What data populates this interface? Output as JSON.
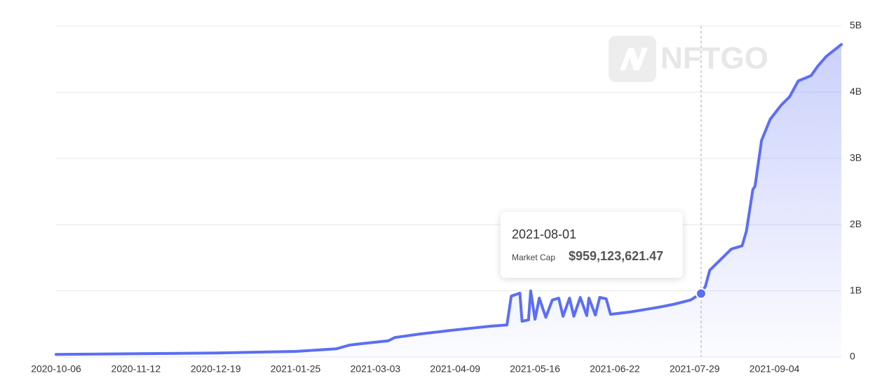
{
  "chart_data": {
    "type": "area",
    "watermark": "NFTGO",
    "x": [
      "2020-10-06",
      "2020-11-12",
      "2020-12-19",
      "2021-01-10",
      "2021-01-25",
      "2021-02-13",
      "2021-02-19",
      "2021-02-24",
      "2021-03-09",
      "2021-03-12",
      "2021-03-24",
      "2021-04-09",
      "2021-04-25",
      "2021-05-03",
      "2021-05-05",
      "2021-05-09",
      "2021-05-10",
      "2021-05-13",
      "2021-05-14",
      "2021-05-16",
      "2021-05-18",
      "2021-05-21",
      "2021-05-24",
      "2021-05-27",
      "2021-05-29",
      "2021-06-01",
      "2021-06-03",
      "2021-06-06",
      "2021-06-09",
      "2021-06-10",
      "2021-06-13",
      "2021-06-15",
      "2021-06-18",
      "2021-06-20",
      "2021-06-29",
      "2021-07-12",
      "2021-07-19",
      "2021-07-27",
      "2021-08-01",
      "2021-08-03",
      "2021-08-05",
      "2021-08-10",
      "2021-08-15",
      "2021-08-20",
      "2021-08-22",
      "2021-08-25",
      "2021-08-26",
      "2021-08-29",
      "2021-09-02",
      "2021-09-07",
      "2021-09-11",
      "2021-09-15",
      "2021-09-21",
      "2021-09-24",
      "2021-09-28",
      "2021-10-05"
    ],
    "series": [
      {
        "name": "Market Cap",
        "color": "#5b6ef5",
        "values": [
          40000000,
          50000000,
          60000000,
          75000000,
          85000000,
          125000000,
          180000000,
          200000000,
          245000000,
          295000000,
          350000000,
          410000000,
          465000000,
          485000000,
          920000000,
          965000000,
          540000000,
          560000000,
          1000000000,
          570000000,
          890000000,
          600000000,
          860000000,
          890000000,
          615000000,
          890000000,
          615000000,
          900000000,
          625000000,
          890000000,
          635000000,
          900000000,
          880000000,
          645000000,
          680000000,
          750000000,
          795000000,
          860000000,
          959123621.47,
          1070000000,
          1310000000,
          1470000000,
          1630000000,
          1680000000,
          1900000000,
          2530000000,
          2580000000,
          3270000000,
          3590000000,
          3800000000,
          3930000000,
          4170000000,
          4250000000,
          4390000000,
          4540000000,
          4720000000
        ]
      }
    ],
    "xlim": [
      "2020-10-06",
      "2021-10-05"
    ],
    "xticks": [
      "2020-10-06",
      "2020-11-12",
      "2020-12-19",
      "2021-01-25",
      "2021-03-03",
      "2021-04-09",
      "2021-05-16",
      "2021-06-22",
      "2021-07-29",
      "2021-09-04"
    ],
    "ylim": [
      0,
      5000000000
    ],
    "yticks": [
      0,
      {
        "value": 1000000000,
        "label": "1B"
      },
      {
        "value": 2000000000,
        "label": "2B"
      },
      {
        "value": 3000000000,
        "label": "3B"
      },
      {
        "value": 4000000000,
        "label": "4B"
      },
      {
        "value": 5000000000,
        "label": "5B"
      }
    ],
    "grid": true,
    "tooltip": {
      "x": "2021-08-01",
      "value_label": "$959,123,621.47"
    }
  }
}
